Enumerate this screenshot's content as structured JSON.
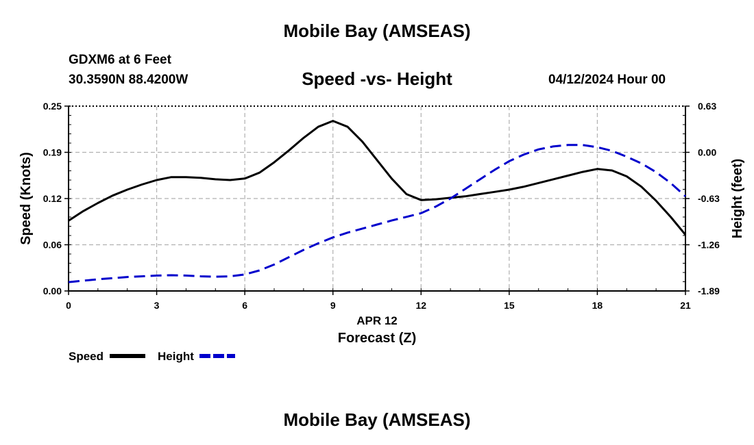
{
  "header": {
    "title": "Mobile Bay (AMSEAS)",
    "station": "GDXM6 at 6 Feet",
    "coordinates": "30.3590N  88.4200W",
    "subtitle": "Speed -vs- Height",
    "datetime": "04/12/2024 Hour 00"
  },
  "footer": {
    "title": "Mobile Bay (AMSEAS)"
  },
  "colors": {
    "speed": "#000000",
    "height": "#0000cc",
    "grid": "#b0b0b0"
  },
  "chart_data": {
    "type": "line",
    "title": "Speed -vs- Height",
    "xlabel": "Forecast (Z)",
    "xdate_label": "APR 12",
    "ylabel": "Speed (Knots)",
    "y2label": "Height (feet)",
    "xlim": [
      0,
      21
    ],
    "ylim": [
      0,
      0.25
    ],
    "y2lim": [
      -1.89,
      0.63
    ],
    "xticks": [
      "0",
      "3",
      "6",
      "9",
      "12",
      "15",
      "18",
      "21"
    ],
    "yticks": [
      "0.00",
      "0.06",
      "0.12",
      "0.19",
      "0.25"
    ],
    "y2ticks": [
      "-1.89",
      "-1.26",
      "-0.63",
      "0.00",
      "0.63"
    ],
    "grid": true,
    "legend_position": "bottom-left",
    "series": [
      {
        "name": "Speed",
        "axis": "left",
        "style": "solid",
        "x": [
          0,
          0.5,
          1,
          1.5,
          2,
          2.5,
          3,
          3.5,
          4,
          4.5,
          5,
          5.5,
          6,
          6.5,
          7,
          7.5,
          8,
          8.5,
          9,
          9.5,
          10,
          10.5,
          11,
          11.5,
          12,
          12.5,
          13,
          13.5,
          14,
          14.5,
          15,
          15.5,
          16,
          16.5,
          17,
          17.5,
          18,
          18.5,
          19,
          19.5,
          20,
          20.5,
          21
        ],
        "values": [
          0.095,
          0.108,
          0.119,
          0.129,
          0.137,
          0.144,
          0.15,
          0.154,
          0.154,
          0.153,
          0.151,
          0.15,
          0.152,
          0.16,
          0.174,
          0.19,
          0.207,
          0.222,
          0.23,
          0.222,
          0.202,
          0.177,
          0.152,
          0.131,
          0.123,
          0.124,
          0.126,
          0.128,
          0.131,
          0.134,
          0.137,
          0.141,
          0.146,
          0.151,
          0.156,
          0.161,
          0.165,
          0.163,
          0.155,
          0.141,
          0.122,
          0.1,
          0.076
        ]
      },
      {
        "name": "Height",
        "axis": "right",
        "style": "dashed",
        "x": [
          0,
          0.5,
          1,
          1.5,
          2,
          2.5,
          3,
          3.5,
          4,
          4.5,
          5,
          5.5,
          6,
          6.5,
          7,
          7.5,
          8,
          8.5,
          9,
          9.5,
          10,
          10.5,
          11,
          11.5,
          12,
          12.5,
          13,
          13.5,
          14,
          14.5,
          15,
          15.5,
          16,
          16.5,
          17,
          17.5,
          18,
          18.5,
          19,
          19.5,
          20,
          20.5,
          21
        ],
        "values": [
          -1.77,
          -1.75,
          -1.73,
          -1.715,
          -1.7,
          -1.69,
          -1.68,
          -1.675,
          -1.68,
          -1.69,
          -1.695,
          -1.69,
          -1.665,
          -1.61,
          -1.53,
          -1.43,
          -1.33,
          -1.24,
          -1.16,
          -1.095,
          -1.04,
          -0.985,
          -0.93,
          -0.88,
          -0.83,
          -0.74,
          -0.63,
          -0.5,
          -0.37,
          -0.24,
          -0.12,
          -0.03,
          0.04,
          0.08,
          0.1,
          0.1,
          0.07,
          0.02,
          -0.06,
          -0.15,
          -0.27,
          -0.42,
          -0.6
        ]
      }
    ]
  }
}
